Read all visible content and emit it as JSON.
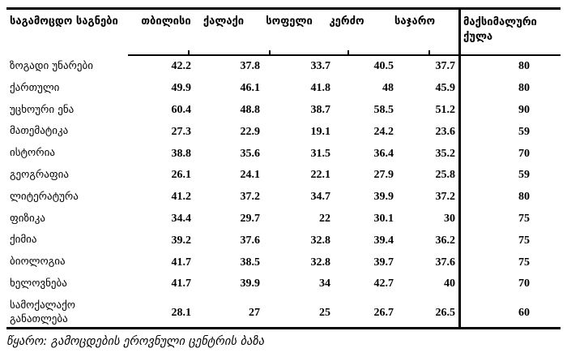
{
  "colors": {
    "text": "#000000",
    "rule": "#000000",
    "background": "#ffffff"
  },
  "table": {
    "columns": [
      "საგამოცდო საგნები",
      "თბილისი",
      "ქალაქი",
      "სოფელი",
      "კერძო",
      "საჯარო",
      "მაქსიმალური ქულა"
    ],
    "rows": [
      {
        "subject": "ზოგადი უნარები",
        "values": [
          "42.2",
          "37.8",
          "33.7",
          "40.5",
          "37.7",
          "80"
        ]
      },
      {
        "subject": "ქართული",
        "values": [
          "49.9",
          "46.1",
          "41.8",
          "48",
          "45.9",
          "80"
        ]
      },
      {
        "subject": "უცხოური ენა",
        "values": [
          "60.4",
          "48.8",
          "38.7",
          "58.5",
          "51.2",
          "90"
        ]
      },
      {
        "subject": "მათემატიკა",
        "values": [
          "27.3",
          "22.9",
          "19.1",
          "24.2",
          "23.6",
          "59"
        ]
      },
      {
        "subject": "ისტორია",
        "values": [
          "38.8",
          "35.6",
          "31.5",
          "36.4",
          "35.2",
          "70"
        ]
      },
      {
        "subject": "გეოგრაფია",
        "values": [
          "26.1",
          "24.1",
          "22.1",
          "27.9",
          "25.8",
          "59"
        ]
      },
      {
        "subject": "ლიტერატურა",
        "values": [
          "41.2",
          "37.2",
          "34.7",
          "39.9",
          "37.2",
          "80"
        ]
      },
      {
        "subject": "ფიზიკა",
        "values": [
          "34.4",
          "29.7",
          "22",
          "30.1",
          "30",
          "75"
        ]
      },
      {
        "subject": "ქიმია",
        "values": [
          "39.2",
          "37.6",
          "32.8",
          "39.4",
          "36.2",
          "75"
        ]
      },
      {
        "subject": "ბიოლოგია",
        "values": [
          "41.7",
          "38.5",
          "32.8",
          "39.7",
          "37.6",
          "75"
        ]
      },
      {
        "subject": "ხელოვნება",
        "values": [
          "41.7",
          "39.9",
          "34",
          "42.7",
          "40",
          "70"
        ]
      },
      {
        "subject": "სამოქალაქო განათლება",
        "values": [
          "28.1",
          "27",
          "25",
          "26.7",
          "26.5",
          "60"
        ]
      }
    ]
  },
  "footer": {
    "source": "წყარო: გამოცდების ეროვნული ცენტრის ბაზა"
  }
}
